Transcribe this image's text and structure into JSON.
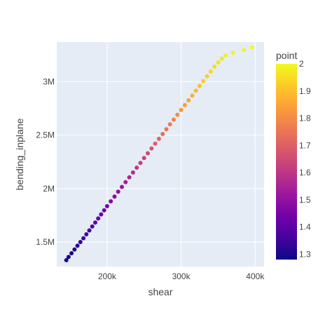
{
  "chart_data": {
    "type": "scatter",
    "xlabel": "shear",
    "ylabel": "bending_inplane",
    "xlim": [
      132000,
      412000
    ],
    "ylim": [
      1270000,
      3370000
    ],
    "x_ticks": [
      {
        "value": 200000,
        "label": "200k"
      },
      {
        "value": 300000,
        "label": "300k"
      },
      {
        "value": 400000,
        "label": "400k"
      }
    ],
    "y_ticks": [
      {
        "value": 1500000,
        "label": "1.5M"
      },
      {
        "value": 2000000,
        "label": "2M"
      },
      {
        "value": 2500000,
        "label": "2.5M"
      },
      {
        "value": 3000000,
        "label": "3M"
      }
    ],
    "colorbar": {
      "title": "point",
      "range": [
        1.28,
        2.0
      ],
      "ticks": [
        "1.3",
        "1.4",
        "1.5",
        "1.6",
        "1.7",
        "1.8",
        "1.9",
        "2"
      ],
      "colorscale": [
        "#0d0887",
        "#46039f",
        "#7201a8",
        "#9c179e",
        "#bd3786",
        "#d8576b",
        "#ed7953",
        "#fb9f3a",
        "#fdca26",
        "#f0f921"
      ]
    },
    "series": [
      {
        "points": [
          [
            145000,
            1330000,
            1.28
          ],
          [
            148000,
            1360000,
            1.29
          ],
          [
            152000,
            1395000,
            1.3
          ],
          [
            156000,
            1430000,
            1.31
          ],
          [
            160000,
            1465000,
            1.32
          ],
          [
            164000,
            1500000,
            1.33
          ],
          [
            168000,
            1535000,
            1.35
          ],
          [
            172000,
            1572000,
            1.36
          ],
          [
            176000,
            1608000,
            1.37
          ],
          [
            180000,
            1645000,
            1.39
          ],
          [
            184000,
            1682000,
            1.4
          ],
          [
            188000,
            1720000,
            1.41
          ],
          [
            192000,
            1758000,
            1.43
          ],
          [
            196000,
            1796000,
            1.44
          ],
          [
            200000,
            1835000,
            1.45
          ],
          [
            205000,
            1880000,
            1.47
          ],
          [
            210000,
            1925000,
            1.49
          ],
          [
            215000,
            1970000,
            1.5
          ],
          [
            220000,
            2015000,
            1.52
          ],
          [
            225000,
            2060000,
            1.54
          ],
          [
            230000,
            2105000,
            1.56
          ],
          [
            235000,
            2150000,
            1.58
          ],
          [
            240000,
            2195000,
            1.6
          ],
          [
            245000,
            2240000,
            1.62
          ],
          [
            250000,
            2285000,
            1.63
          ],
          [
            255000,
            2330000,
            1.65
          ],
          [
            260000,
            2375000,
            1.67
          ],
          [
            265000,
            2420000,
            1.69
          ],
          [
            270000,
            2465000,
            1.71
          ],
          [
            275000,
            2510000,
            1.73
          ],
          [
            280000,
            2555000,
            1.75
          ],
          [
            285000,
            2600000,
            1.76
          ],
          [
            290000,
            2645000,
            1.78
          ],
          [
            295000,
            2690000,
            1.8
          ],
          [
            300000,
            2735000,
            1.82
          ],
          [
            305000,
            2780000,
            1.84
          ],
          [
            310000,
            2825000,
            1.85
          ],
          [
            315000,
            2870000,
            1.87
          ],
          [
            320000,
            2915000,
            1.89
          ],
          [
            325000,
            2960000,
            1.9
          ],
          [
            330000,
            3005000,
            1.92
          ],
          [
            335000,
            3050000,
            1.93
          ],
          [
            340000,
            3095000,
            1.94
          ],
          [
            345000,
            3140000,
            1.95
          ],
          [
            350000,
            3180000,
            1.96
          ],
          [
            355000,
            3215000,
            1.97
          ],
          [
            360000,
            3245000,
            1.98
          ],
          [
            370000,
            3270000,
            1.99
          ],
          [
            385000,
            3295000,
            1.995
          ],
          [
            396000,
            3320000,
            2.0
          ]
        ]
      }
    ]
  }
}
